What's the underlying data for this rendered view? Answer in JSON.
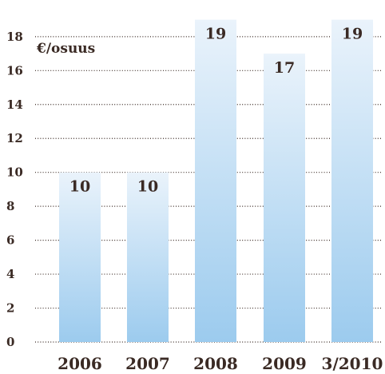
{
  "chart_data": {
    "type": "bar",
    "categories": [
      "2006",
      "2007",
      "2008",
      "2009",
      "3/2010"
    ],
    "values": [
      10,
      10,
      19,
      17,
      19
    ],
    "value_labels": [
      "10",
      "10",
      "19",
      "17",
      "19"
    ],
    "ylabel": "€/osuus",
    "ylim": [
      0,
      19.5
    ],
    "yticks": [
      0,
      2,
      4,
      6,
      8,
      10,
      12,
      14,
      16,
      18
    ],
    "ytick_labels": [
      "0",
      "2",
      "4",
      "6",
      "8",
      "10",
      "12",
      "14",
      "16",
      "18"
    ],
    "grid": true,
    "bar_color_top": "#eaf3fb",
    "bar_color_bottom": "#9ccbee",
    "text_color": "#3a2a24"
  }
}
